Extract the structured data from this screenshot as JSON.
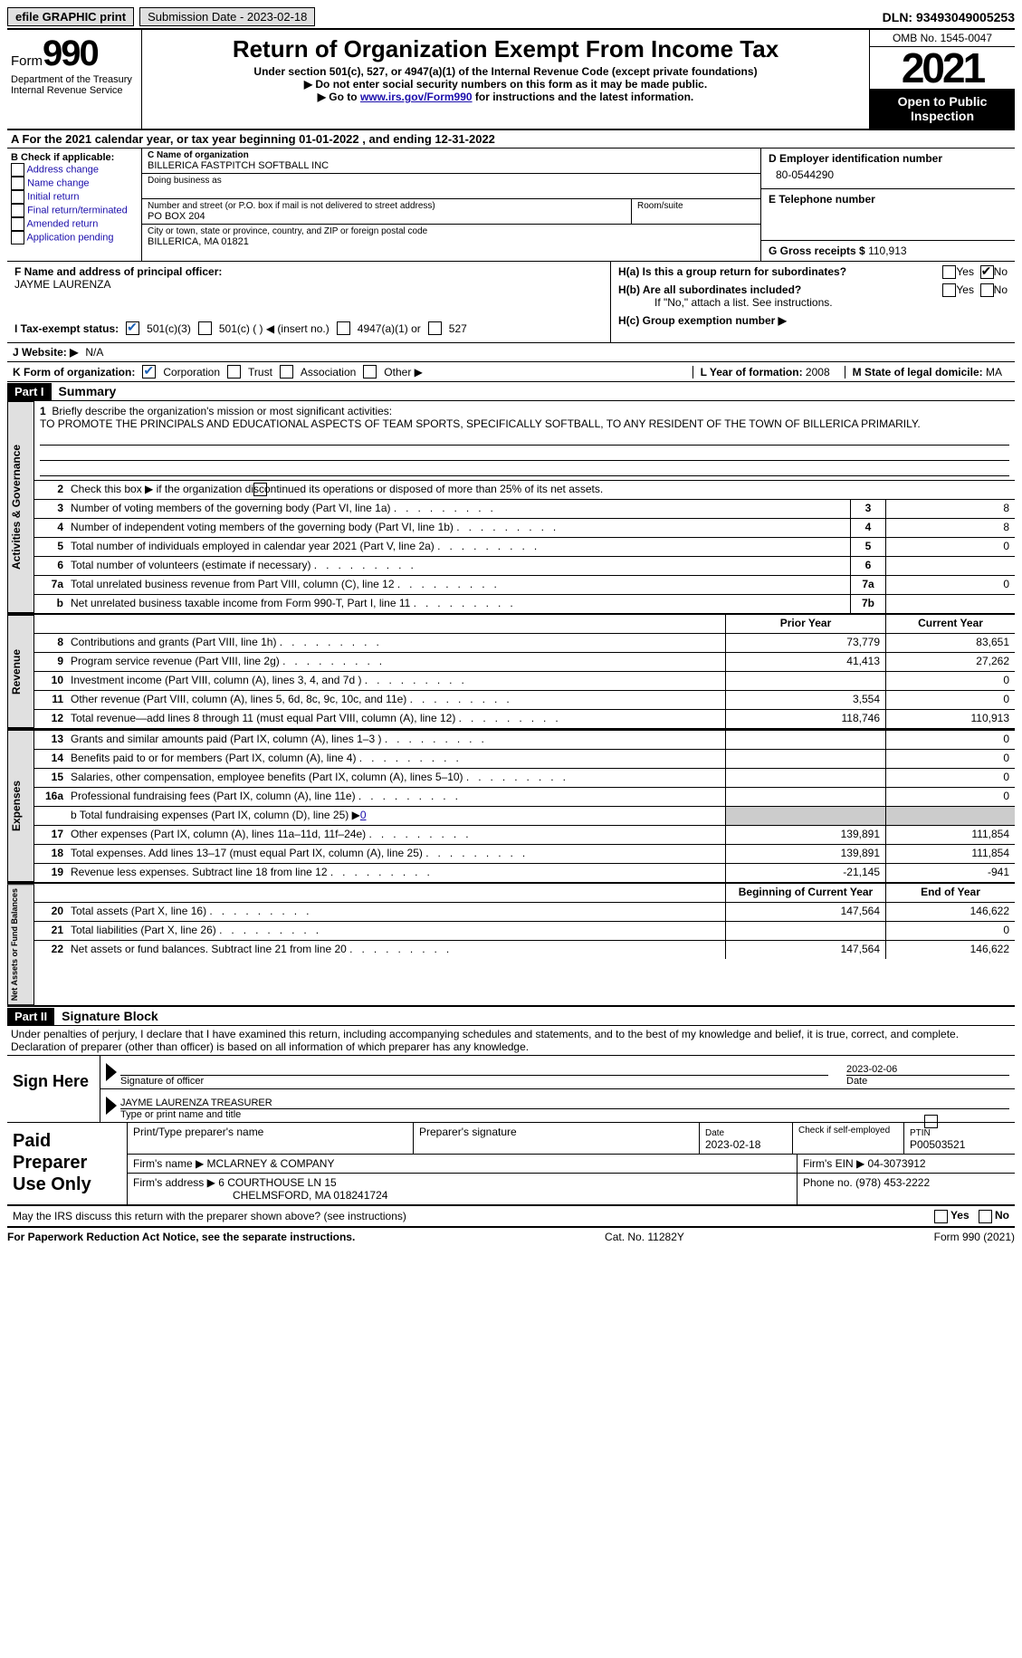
{
  "topbar": {
    "efile": "efile GRAPHIC print",
    "submission": "Submission Date - 2023-02-18",
    "dln": "DLN: 93493049005253"
  },
  "header": {
    "form_label": "Form",
    "form_num": "990",
    "dept": "Department of the Treasury",
    "irs": "Internal Revenue Service",
    "title": "Return of Organization Exempt From Income Tax",
    "subtitle": "Under section 501(c), 527, or 4947(a)(1) of the Internal Revenue Code (except private foundations)",
    "note1": "▶ Do not enter social security numbers on this form as it may be made public.",
    "note2_pre": "▶ Go to ",
    "note2_link": "www.irs.gov/Form990",
    "note2_post": " for instructions and the latest information.",
    "omb": "OMB No. 1545-0047",
    "year": "2021",
    "open": "Open to Public Inspection"
  },
  "rowA": "A For the 2021 calendar year, or tax year beginning 01-01-2022    , and ending 12-31-2022",
  "B": {
    "label": "B Check if applicable:",
    "opts": [
      "Address change",
      "Name change",
      "Initial return",
      "Final return/terminated",
      "Amended return",
      "Application pending"
    ]
  },
  "C": {
    "name_label": "C Name of organization",
    "name": "BILLERICA FASTPITCH SOFTBALL INC",
    "dba_label": "Doing business as",
    "street_label": "Number and street (or P.O. box if mail is not delivered to street address)",
    "street": "PO BOX 204",
    "suite_label": "Room/suite",
    "city_label": "City or town, state or province, country, and ZIP or foreign postal code",
    "city": "BILLERICA, MA   01821"
  },
  "D": {
    "ein_label": "D Employer identification number",
    "ein": "80-0544290",
    "tel_label": "E Telephone number",
    "gross_label": "G Gross receipts $",
    "gross": "110,913"
  },
  "F": {
    "label": "F  Name and address of principal officer:",
    "name": "JAYME LAURENZA"
  },
  "H": {
    "a": "H(a)  Is this a group return for subordinates?",
    "b": "H(b)  Are all subordinates included?",
    "note": "If \"No,\" attach a list. See instructions.",
    "c": "H(c)  Group exemption number ▶",
    "yes": "Yes",
    "no": "No"
  },
  "I": {
    "label": "I    Tax-exempt status:",
    "o1": "501(c)(3)",
    "o2": "501(c) (   ) ◀ (insert no.)",
    "o3": "4947(a)(1) or",
    "o4": "527"
  },
  "J": {
    "label": "J   Website: ▶",
    "val": "N/A"
  },
  "K": {
    "label": "K Form of organization:",
    "o1": "Corporation",
    "o2": "Trust",
    "o3": "Association",
    "o4": "Other ▶"
  },
  "L": {
    "label": "L Year of formation:",
    "val": "2008"
  },
  "M": {
    "label": "M State of legal domicile:",
    "val": "MA"
  },
  "part1": {
    "header": "Part I",
    "title": "Summary",
    "l1_label": "1",
    "l1": "Briefly describe the organization's mission or most significant activities:",
    "mission": "TO PROMOTE THE PRINCIPALS AND EDUCATIONAL ASPECTS OF TEAM SPORTS, SPECIFICALLY SOFTBALL, TO ANY RESIDENT OF THE TOWN OF BILLERICA PRIMARILY.",
    "l2": "Check this box ▶        if the organization discontinued its operations or disposed of more than 25% of its net assets.",
    "lines_ag": [
      {
        "n": "3",
        "d": "Number of voting members of the governing body (Part VI, line 1a)",
        "b": "3",
        "v": "8"
      },
      {
        "n": "4",
        "d": "Number of independent voting members of the governing body (Part VI, line 1b)",
        "b": "4",
        "v": "8"
      },
      {
        "n": "5",
        "d": "Total number of individuals employed in calendar year 2021 (Part V, line 2a)",
        "b": "5",
        "v": "0"
      },
      {
        "n": "6",
        "d": "Total number of volunteers (estimate if necessary)",
        "b": "6",
        "v": ""
      },
      {
        "n": "7a",
        "d": "Total unrelated business revenue from Part VIII, column (C), line 12",
        "b": "7a",
        "v": "0"
      },
      {
        "n": "b",
        "d": "Net unrelated business taxable income from Form 990-T, Part I, line 11",
        "b": "7b",
        "v": ""
      }
    ],
    "colhead_prior": "Prior Year",
    "colhead_current": "Current Year",
    "rev": [
      {
        "n": "8",
        "d": "Contributions and grants (Part VIII, line 1h)",
        "p": "73,779",
        "c": "83,651"
      },
      {
        "n": "9",
        "d": "Program service revenue (Part VIII, line 2g)",
        "p": "41,413",
        "c": "27,262"
      },
      {
        "n": "10",
        "d": "Investment income (Part VIII, column (A), lines 3, 4, and 7d )",
        "p": "",
        "c": "0"
      },
      {
        "n": "11",
        "d": "Other revenue (Part VIII, column (A), lines 5, 6d, 8c, 9c, 10c, and 11e)",
        "p": "3,554",
        "c": "0"
      },
      {
        "n": "12",
        "d": "Total revenue—add lines 8 through 11 (must equal Part VIII, column (A), line 12)",
        "p": "118,746",
        "c": "110,913"
      }
    ],
    "exp": [
      {
        "n": "13",
        "d": "Grants and similar amounts paid (Part IX, column (A), lines 1–3 )",
        "p": "",
        "c": "0"
      },
      {
        "n": "14",
        "d": "Benefits paid to or for members (Part IX, column (A), line 4)",
        "p": "",
        "c": "0"
      },
      {
        "n": "15",
        "d": "Salaries, other compensation, employee benefits (Part IX, column (A), lines 5–10)",
        "p": "",
        "c": "0"
      },
      {
        "n": "16a",
        "d": "Professional fundraising fees (Part IX, column (A), line 11e)",
        "p": "",
        "c": "0"
      }
    ],
    "l16b": "b   Total fundraising expenses (Part IX, column (D), line 25) ▶",
    "l16b_val": "0",
    "exp2": [
      {
        "n": "17",
        "d": "Other expenses (Part IX, column (A), lines 11a–11d, 11f–24e)",
        "p": "139,891",
        "c": "111,854"
      },
      {
        "n": "18",
        "d": "Total expenses. Add lines 13–17 (must equal Part IX, column (A), line 25)",
        "p": "139,891",
        "c": "111,854"
      },
      {
        "n": "19",
        "d": "Revenue less expenses. Subtract line 18 from line 12",
        "p": "-21,145",
        "c": "-941"
      }
    ],
    "colhead_begin": "Beginning of Current Year",
    "colhead_end": "End of Year",
    "na": [
      {
        "n": "20",
        "d": "Total assets (Part X, line 16)",
        "p": "147,564",
        "c": "146,622"
      },
      {
        "n": "21",
        "d": "Total liabilities (Part X, line 26)",
        "p": "",
        "c": "0"
      },
      {
        "n": "22",
        "d": "Net assets or fund balances. Subtract line 21 from line 20",
        "p": "147,564",
        "c": "146,622"
      }
    ],
    "vtab_ag": "Activities & Governance",
    "vtab_rev": "Revenue",
    "vtab_exp": "Expenses",
    "vtab_na": "Net Assets or Fund Balances"
  },
  "part2": {
    "header": "Part II",
    "title": "Signature Block",
    "decl": "Under penalties of perjury, I declare that I have examined this return, including accompanying schedules and statements, and to the best of my knowledge and belief, it is true, correct, and complete. Declaration of preparer (other than officer) is based on all information of which preparer has any knowledge.",
    "sign_here": "Sign Here",
    "sig_officer": "Signature of officer",
    "sig_date": "2023-02-06",
    "date_label": "Date",
    "officer_name": "JAYME LAURENZA  TREASURER",
    "type_name": "Type or print name and title"
  },
  "prep": {
    "title": "Paid Preparer Use Only",
    "r1": {
      "c1": "Print/Type preparer's name",
      "c2": "Preparer's signature",
      "c3l": "Date",
      "c3v": "2023-02-18",
      "c4": "Check          if self-employed",
      "c5l": "PTIN",
      "c5v": "P00503521"
    },
    "r2": {
      "l": "Firm's name      ▶",
      "v": "MCLARNEY & COMPANY",
      "einl": "Firm's EIN ▶",
      "einv": "04-3073912"
    },
    "r3": {
      "l": "Firm's address ▶",
      "v1": "6 COURTHOUSE LN 15",
      "v2": "CHELMSFORD, MA  018241724",
      "phl": "Phone no.",
      "phv": "(978) 453-2222"
    }
  },
  "may": {
    "text": "May the IRS discuss this return with the preparer shown above? (see instructions)",
    "yes": "Yes",
    "no": "No"
  },
  "footer": {
    "left": "For Paperwork Reduction Act Notice, see the separate instructions.",
    "mid": "Cat. No. 11282Y",
    "right": "Form 990 (2021)"
  }
}
